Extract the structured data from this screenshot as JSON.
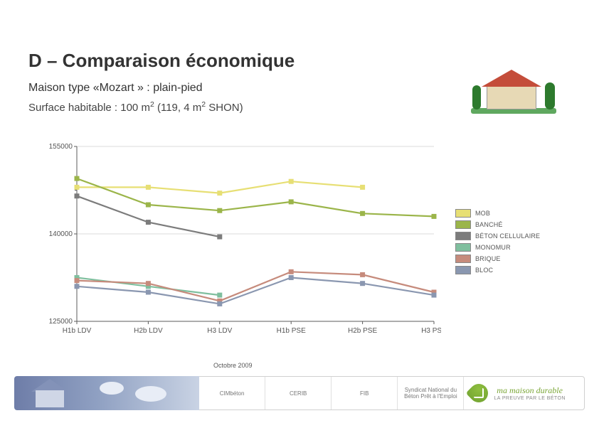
{
  "header": {
    "title": "D – Comparaison économique",
    "subtitle1_prefix": "Maison type «Mozart » : plain-pied",
    "subtitle2_prefix": "Surface habitable : 100 m",
    "subtitle2_mid": " (119, 4 m",
    "subtitle2_suffix": " SHON)",
    "sup": "2"
  },
  "chart": {
    "type": "line",
    "ylim": [
      125000,
      155000
    ],
    "yticks": [
      125000,
      140000,
      155000
    ],
    "ytick_labels": [
      "125000",
      "140000",
      "155000"
    ],
    "categories": [
      "H1b LDV",
      "H2b LDV",
      "H3 LDV",
      "H1b PSE",
      "H2b PSE",
      "H3 PSE"
    ],
    "grid_color": "#cfcfcf",
    "axis_color": "#5b5b5b",
    "line_width": 2.2,
    "marker": "square",
    "marker_size": 6,
    "label_fontsize": 10,
    "series": [
      {
        "name": "MOB",
        "color": "#e7df74",
        "values": [
          148000,
          148000,
          147000,
          149000,
          148000,
          null
        ]
      },
      {
        "name": "BANCHÉ",
        "color": "#9bb54a",
        "values": [
          149500,
          145000,
          144000,
          145500,
          143500,
          143000
        ]
      },
      {
        "name": "BÉTON CELLULAIRE",
        "color": "#7c7c7c",
        "values": [
          146500,
          142000,
          139500,
          null,
          null,
          null
        ]
      },
      {
        "name": "MONOMUR",
        "color": "#7fbf9e",
        "values": [
          132500,
          131000,
          129500,
          null,
          null,
          null
        ]
      },
      {
        "name": "BRIQUE",
        "color": "#c68b7c",
        "values": [
          132000,
          131500,
          128500,
          133500,
          133000,
          130000
        ]
      },
      {
        "name": "BLOC",
        "color": "#8a97b0",
        "values": [
          131000,
          130000,
          128000,
          132500,
          131500,
          129500
        ]
      }
    ]
  },
  "footer": {
    "date": "Octobre 2009",
    "logos": [
      "CIMbéton",
      "CERIB",
      "FIB",
      "Syndicat National du Béton Prêt à l'Emploi"
    ],
    "brand_main": "ma maison durable",
    "brand_sub": "LA PREUVE PAR LE BÉTON"
  },
  "colors": {
    "title": "#333333",
    "background": "#ffffff"
  }
}
